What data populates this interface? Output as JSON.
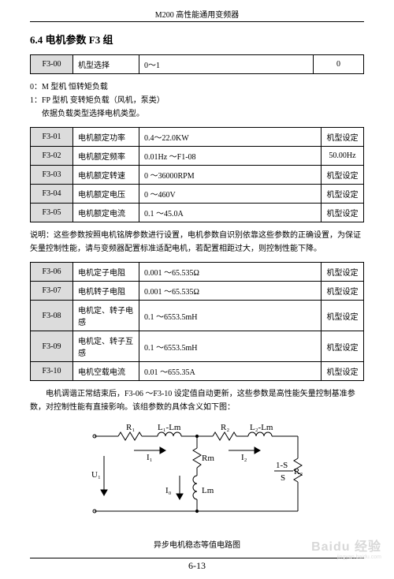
{
  "header": {
    "title": "M200 高性能通用变频器"
  },
  "section": {
    "title": "6.4 电机参数 F3 组"
  },
  "table1": {
    "code": "F3-00",
    "name": "机型选择",
    "range": "0～1",
    "default": "0"
  },
  "notes1": {
    "line1": "0：M 型机 恒转矩负载",
    "line2": "1：FP 型机 变转矩负载（风机，泵类）",
    "line3": "依据负载类型选择电机类型。"
  },
  "table2": {
    "rows": [
      {
        "code": "F3-01",
        "name": "电机额定功率",
        "range": "0.4～22.0KW",
        "setting": "机型设定"
      },
      {
        "code": "F3-02",
        "name": "电机额定频率",
        "range": "0.01Hz ～F1-08",
        "setting": "50.00Hz"
      },
      {
        "code": "F3-03",
        "name": "电机额定转速",
        "range": "0 ～36000RPM",
        "setting": "机型设定"
      },
      {
        "code": "F3-04",
        "name": "电机额定电压",
        "range": "0 ～460V",
        "setting": "机型设定"
      },
      {
        "code": "F3-05",
        "name": "电机额定电流",
        "range": "0.1 ～45.0A",
        "setting": "机型设定"
      }
    ]
  },
  "notes2": {
    "p": "说明：这些参数按照电机铭牌参数进行设置，电机参数自识别依靠这些参数的正确设置，为保证矢量控制性能，请与变频器配置标准适配电机，若配置相距过大，则控制性能下降。"
  },
  "table3": {
    "rows": [
      {
        "code": "F3-06",
        "name": "电机定子电阻",
        "range": "0.001 ～65.535Ω",
        "setting": "机型设定"
      },
      {
        "code": "F3-07",
        "name": "电机转子电阻",
        "range": "0.001 ～65.535Ω",
        "setting": "机型设定"
      },
      {
        "code": "F3-08",
        "name": "电机定、转子电感",
        "range": "0.1 ～6553.5mH",
        "setting": "机型设定"
      },
      {
        "code": "F3-09",
        "name": "电机定、转子互感",
        "range": "0.1 ～6553.5mH",
        "setting": "机型设定"
      },
      {
        "code": "F3-10",
        "name": "电机空载电流",
        "range": "0.01 ～655.35A",
        "setting": "机型设定"
      }
    ]
  },
  "notes3": {
    "p": "电机调谐正常结束后，F3-06 ～F3-10 设定值自动更新，这些参数是高性能矢量控制基准参数，对控制性能有直接影响。该组参数的具体含义如下图："
  },
  "diagram": {
    "caption": "异步电机稳态等值电路图",
    "labels": {
      "R1": "R₁",
      "L1Lm": "L₁-Lm",
      "R2": "R₂",
      "L2Lm": "L₂-Lm",
      "Rm": "Rm",
      "Lm": "Lm",
      "I1": "I₁",
      "I2": "I₂",
      "I0": "I₀",
      "U1": "U₁",
      "slip_num": "1-S",
      "slip_den": "S",
      "slip_R2": "R₂"
    },
    "stroke": "#000000"
  },
  "footer": {
    "page": "6-13"
  },
  "watermark": {
    "main": "Baidu 经验",
    "sub": "jingyan.baidu.com"
  }
}
